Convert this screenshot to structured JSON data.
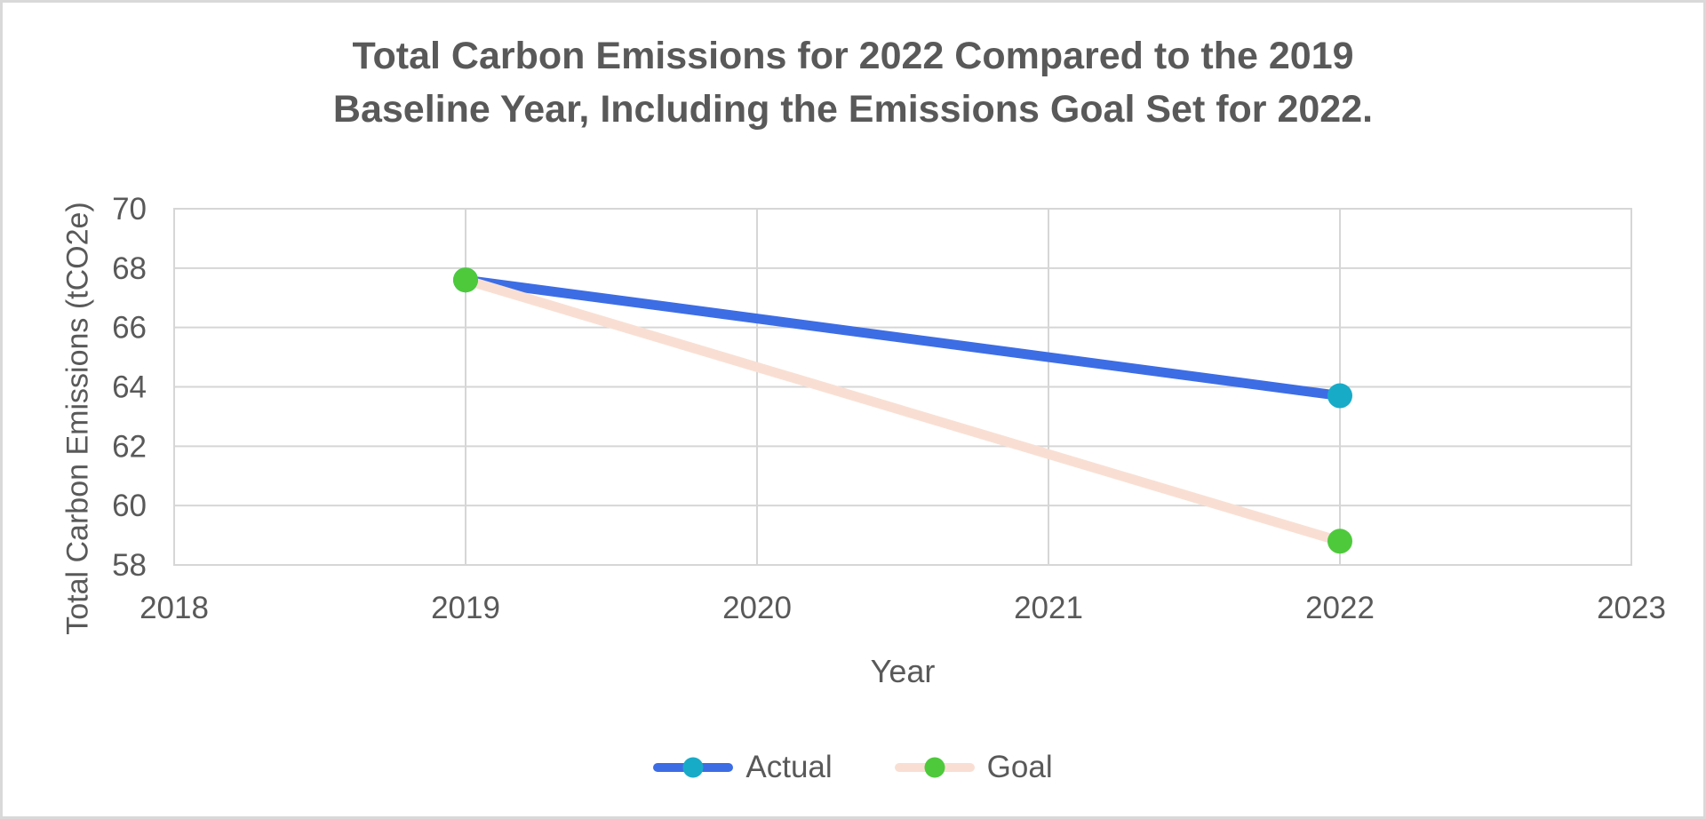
{
  "frame": {
    "background": "#FFFFFF",
    "border_color": "#D9D9D9"
  },
  "chart_data": {
    "type": "line",
    "title": "Total Carbon Emissions for 2022 Compared to the 2019 Baseline Year, Including the Emissions Goal Set for 2022.",
    "title_lines": [
      "Total Carbon Emissions for 2022 Compared to the 2019",
      "Baseline Year, Including the Emissions Goal Set for 2022."
    ],
    "xlabel": "Year",
    "ylabel": "Total Carbon Emissions (tCO2e)",
    "x": [
      2019,
      2022
    ],
    "series": [
      {
        "name": "Actual",
        "values": [
          67.6,
          63.7
        ],
        "line_color": "#3D6DE5",
        "marker_color": "#18ABC8"
      },
      {
        "name": "Goal",
        "values": [
          67.6,
          58.8
        ],
        "line_color": "#F9DFD3",
        "marker_color": "#4EC93C"
      }
    ],
    "xlim": [
      2018,
      2023
    ],
    "ylim": [
      58,
      70
    ],
    "x_ticks": [
      "2018",
      "2019",
      "2020",
      "2021",
      "2022",
      "2023"
    ],
    "x_tick_values": [
      2018,
      2019,
      2020,
      2021,
      2022,
      2023
    ],
    "y_ticks": [
      "70",
      "68",
      "66",
      "64",
      "62",
      "60",
      "58"
    ],
    "y_tick_values": [
      70,
      68,
      66,
      64,
      62,
      60,
      58
    ],
    "grid": true,
    "gridline_color": "#D6D6D6",
    "axis_text_color": "#595959",
    "title_color": "#595959",
    "legend_position": "bottom"
  }
}
